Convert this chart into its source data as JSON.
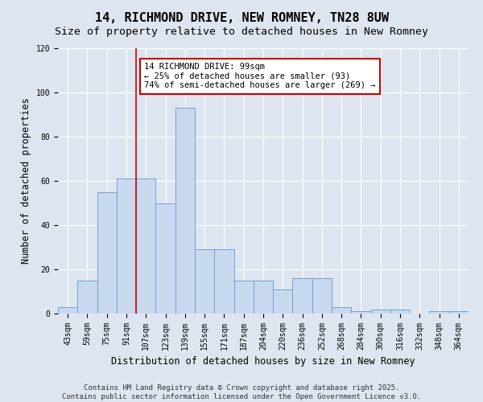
{
  "title": "14, RICHMOND DRIVE, NEW ROMNEY, TN28 8UW",
  "subtitle": "Size of property relative to detached houses in New Romney",
  "xlabel": "Distribution of detached houses by size in New Romney",
  "ylabel": "Number of detached properties",
  "categories": [
    "43sqm",
    "59sqm",
    "75sqm",
    "91sqm",
    "107sqm",
    "123sqm",
    "139sqm",
    "155sqm",
    "171sqm",
    "187sqm",
    "204sqm",
    "220sqm",
    "236sqm",
    "252sqm",
    "268sqm",
    "284sqm",
    "300sqm",
    "316sqm",
    "332sqm",
    "348sqm",
    "364sqm"
  ],
  "values": [
    3,
    15,
    55,
    61,
    61,
    50,
    93,
    29,
    29,
    15,
    15,
    11,
    16,
    16,
    3,
    1,
    2,
    2,
    0,
    1,
    1
  ],
  "bar_color": "#c8d9ef",
  "bar_edge_color": "#6699cc",
  "red_line_x": 3.5,
  "annotation_text": "14 RICHMOND DRIVE: 99sqm\n← 25% of detached houses are smaller (93)\n74% of semi-detached houses are larger (269) →",
  "annotation_box_color": "#ffffff",
  "annotation_box_edge": "#cc0000",
  "ylim": [
    0,
    120
  ],
  "yticks": [
    0,
    20,
    40,
    60,
    80,
    100,
    120
  ],
  "footer_line1": "Contains HM Land Registry data © Crown copyright and database right 2025.",
  "footer_line2": "Contains public sector information licensed under the Open Government Licence v3.0.",
  "bg_color": "#dde5f0",
  "plot_bg_color": "#dde5f0",
  "title_fontsize": 11,
  "subtitle_fontsize": 9.5,
  "axis_label_fontsize": 8.5,
  "tick_fontsize": 7,
  "footer_fontsize": 6.5,
  "annotation_fontsize": 7.5
}
